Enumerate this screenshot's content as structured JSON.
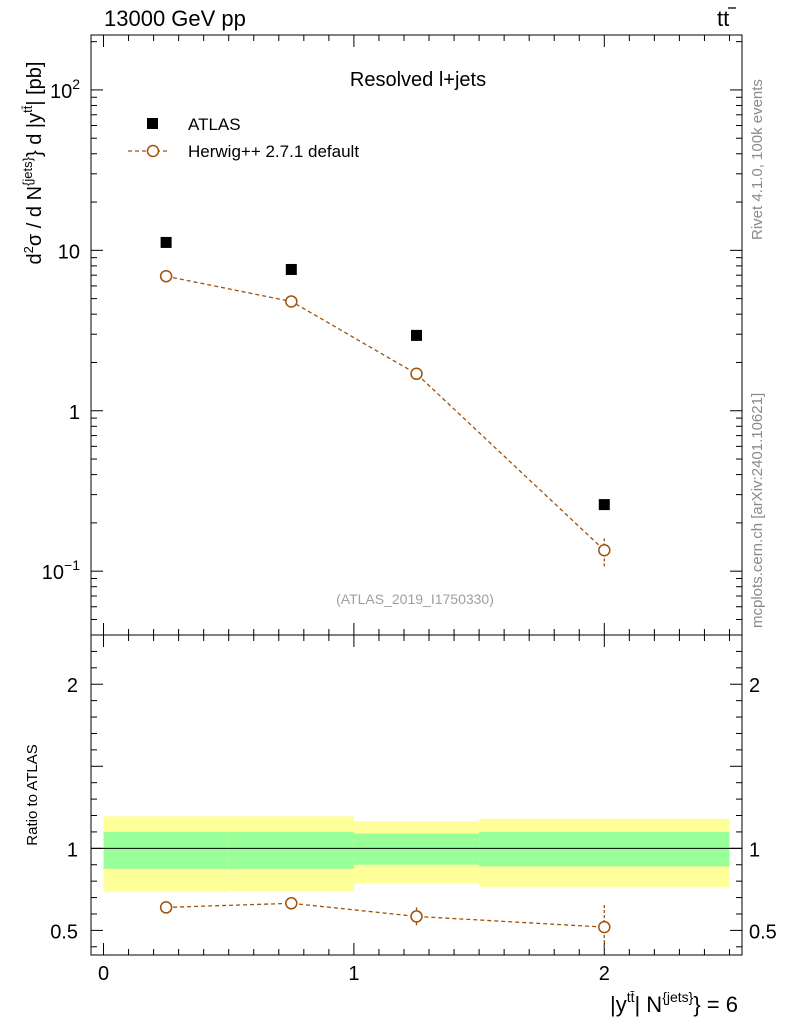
{
  "header": {
    "left": "13000 GeV pp",
    "right_base": "t",
    "right_bar": "t"
  },
  "side_text": {
    "rivet": "Rivet 4.1.0,  100k events",
    "mcplots": "mcplots.cern.ch [arXiv:2401.10621]"
  },
  "chart_data": [
    {
      "type": "scatter",
      "title": "Resolved l+jets",
      "watermark": "(ATLAS_2019_I1750330)",
      "ylabel": "d²σ / d N^{jets} d |y^{tt̄}| [pb]",
      "yscale": "log",
      "ylim": [
        0.04,
        220
      ],
      "xlim": [
        -0.05,
        2.55
      ],
      "y_ticks": [
        {
          "value": 0.1,
          "base": "10",
          "exp": "−1"
        },
        {
          "value": 1,
          "label": "1"
        },
        {
          "value": 10,
          "label": "10"
        },
        {
          "value": 100,
          "base": "10",
          "exp": "2"
        }
      ],
      "series": [
        {
          "name": "ATLAS",
          "style": "data",
          "x": [
            0.25,
            0.75,
            1.25,
            2.0
          ],
          "y": [
            11.2,
            7.6,
            2.95,
            0.26
          ]
        },
        {
          "name": "Herwig++ 2.7.1 default",
          "style": "mc",
          "color": "#a0520a",
          "x": [
            0.25,
            0.75,
            1.25,
            2.0
          ],
          "y": [
            6.9,
            4.8,
            1.7,
            0.135
          ],
          "err_low": [
            0.1,
            0.08,
            0.05,
            0.03
          ],
          "err_high": [
            0.1,
            0.08,
            0.05,
            0.025
          ]
        }
      ]
    },
    {
      "type": "line",
      "ylabel": "Ratio to ATLAS",
      "xlabel": "|y^{tt̄}| N^{jets} = 6",
      "xlim": [
        -0.05,
        2.55
      ],
      "ylim": [
        0.35,
        2.3
      ],
      "x_ticks": [
        0,
        1,
        2
      ],
      "y_ticks": [
        0.5,
        1,
        2
      ],
      "reference": 1,
      "bands": [
        {
          "x0": 0,
          "x1": 0.5,
          "yellow": [
            0.735,
            1.195
          ],
          "green": [
            0.875,
            1.1
          ]
        },
        {
          "x0": 0.5,
          "x1": 1.0,
          "yellow": [
            0.74,
            1.195
          ],
          "green": [
            0.875,
            1.1
          ]
        },
        {
          "x0": 1.0,
          "x1": 1.5,
          "yellow": [
            0.785,
            1.165
          ],
          "green": [
            0.9,
            1.09
          ]
        },
        {
          "x0": 1.5,
          "x1": 2.5,
          "yellow": [
            0.765,
            1.18
          ],
          "green": [
            0.89,
            1.1
          ]
        }
      ],
      "series": [
        {
          "name": "Herwig++ 2.7.1 default",
          "color": "#a0520a",
          "x": [
            0.25,
            0.75,
            1.25,
            2.0
          ],
          "y": [
            0.64,
            0.665,
            0.585,
            0.52
          ],
          "err": [
            0.025,
            0.03,
            0.055,
            0.135
          ]
        }
      ]
    }
  ]
}
